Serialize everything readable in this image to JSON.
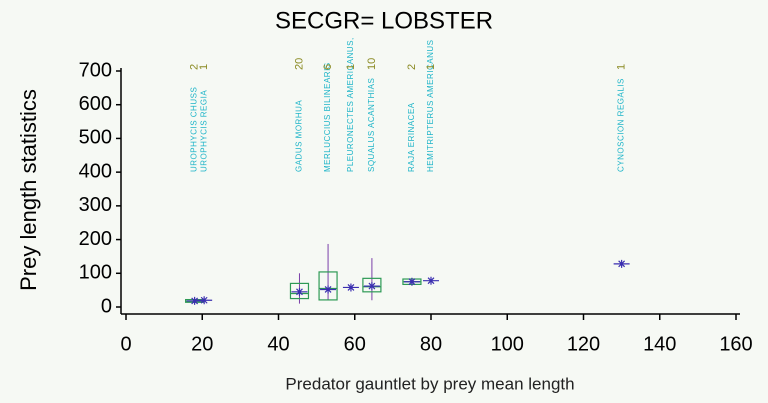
{
  "chart_data": {
    "type": "box",
    "title": "SECGR= LOBSTER",
    "ylabel": "Prey length statistics",
    "xlabel": "Predator gauntlet by prey mean length",
    "xlim": [
      0,
      160
    ],
    "xticks": [
      0,
      20,
      40,
      60,
      80,
      100,
      120,
      140,
      160
    ],
    "ylim": [
      0,
      700
    ],
    "yticks": [
      0,
      100,
      200,
      300,
      400,
      500,
      600,
      700
    ],
    "box_color": "#2e9a55",
    "whisker_color": "#7a3fa8",
    "mean_color": "#3b2fb0",
    "groups": [
      {
        "name": "UROPHYCIS CHUSS",
        "n": 2,
        "x": 18,
        "min": 12,
        "q1": 14,
        "median": 17,
        "q3": 22,
        "max": 24,
        "mean": 18
      },
      {
        "name": "UROPHYCIS REGIA",
        "n": 1,
        "x": 20.5,
        "mean": 20
      },
      {
        "name": "GADUS MORHUA",
        "n": 20,
        "x": 45.5,
        "min": 10,
        "q1": 25,
        "median": 40,
        "q3": 70,
        "max": 100,
        "mean": 45
      },
      {
        "name": "MERLUCCIUS BILINEARIS",
        "n": 6,
        "x": 53,
        "min": 20,
        "q1": 21,
        "median": 55,
        "q3": 104,
        "max": 187,
        "mean": 52
      },
      {
        "name": "PLEURONECTES AMERICANUS,",
        "n": 1,
        "x": 59,
        "mean": 58
      },
      {
        "name": "SQUALUS ACANTHIAS",
        "n": 10,
        "x": 64.5,
        "min": 20,
        "q1": 45,
        "median": 60,
        "q3": 85,
        "max": 145,
        "mean": 62
      },
      {
        "name": "RAJA ERINACEA",
        "n": 2,
        "x": 75,
        "min": 65,
        "q1": 67,
        "median": 75,
        "q3": 83,
        "max": 85,
        "mean": 75
      },
      {
        "name": "HEMITRIPTERUS AMERICANUS",
        "n": 1,
        "x": 80,
        "mean": 78
      },
      {
        "name": "CYNOSCION REGALIS",
        "n": 1,
        "x": 130,
        "mean": 128
      }
    ]
  }
}
